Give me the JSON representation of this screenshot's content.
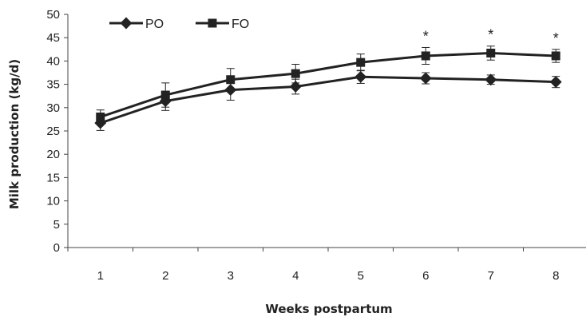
{
  "chart_data": {
    "type": "line",
    "xlabel": "Weeks postpartum",
    "ylabel": "Milk production (kg/d)",
    "x": [
      1,
      2,
      3,
      4,
      5,
      6,
      7,
      8
    ],
    "ylim": [
      0,
      50
    ],
    "yticks": [
      0,
      5,
      10,
      15,
      20,
      25,
      30,
      35,
      40,
      45,
      50
    ],
    "grid": false,
    "legend": "top-left",
    "series": [
      {
        "name": "PO",
        "marker": "diamond",
        "values": [
          26.7,
          31.4,
          33.8,
          34.5,
          36.6,
          36.3,
          36.0,
          35.5
        ],
        "errors": [
          1.6,
          2.0,
          2.2,
          1.6,
          1.4,
          1.2,
          1.0,
          1.2
        ]
      },
      {
        "name": "FO",
        "marker": "square",
        "values": [
          28.0,
          32.7,
          36.0,
          37.3,
          39.7,
          41.1,
          41.7,
          41.1
        ],
        "errors": [
          1.5,
          2.6,
          2.4,
          2.0,
          1.8,
          1.8,
          1.5,
          1.4
        ]
      }
    ],
    "annotations": [
      {
        "text": "*",
        "x": 6
      },
      {
        "text": "*",
        "x": 7
      },
      {
        "text": "*",
        "x": 8
      }
    ],
    "colors": {
      "line": "#222222"
    }
  }
}
